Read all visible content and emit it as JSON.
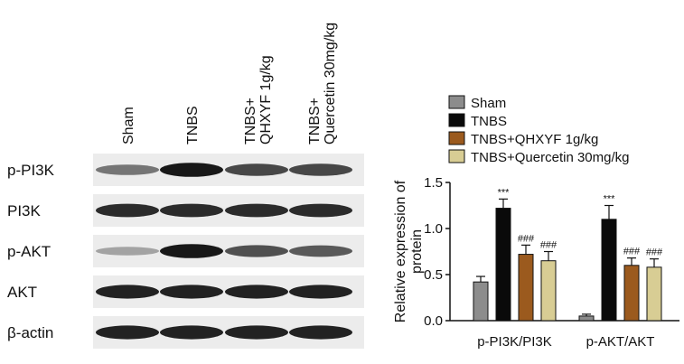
{
  "blot": {
    "lanes": [
      "Sham",
      "TNBS",
      "TNBS+\nQHXYF 1g/kg",
      "TNBS+\nQuercetin 30mg/kg"
    ],
    "rows": [
      {
        "protein": "p-PI3K",
        "intensity": [
          0.45,
          0.95,
          0.7,
          0.7
        ]
      },
      {
        "protein": "PI3K",
        "intensity": [
          0.85,
          0.85,
          0.85,
          0.85
        ]
      },
      {
        "protein": "p-AKT",
        "intensity": [
          0.2,
          0.95,
          0.65,
          0.6
        ]
      },
      {
        "protein": "AKT",
        "intensity": [
          0.9,
          0.9,
          0.9,
          0.9
        ]
      },
      {
        "protein": "β-actin",
        "intensity": [
          0.9,
          0.9,
          0.9,
          0.9
        ]
      }
    ]
  },
  "chart_data": {
    "type": "bar",
    "categories": [
      "p-PI3K/PI3K",
      "p-AKT/AKT"
    ],
    "ylabel": "Relative expression of\nprotein",
    "ylim": [
      0,
      1.5
    ],
    "yticks": [
      "0.0",
      "0.5",
      "1.0",
      "1.5"
    ],
    "legend_position": "top",
    "series": [
      {
        "name": "Sham",
        "color": "#8c8c8c",
        "values": [
          0.42,
          0.05
        ],
        "errors": [
          0.06,
          0.02
        ],
        "sig": [
          "",
          ""
        ]
      },
      {
        "name": "TNBS",
        "color": "#0a0a0a",
        "values": [
          1.22,
          1.1
        ],
        "errors": [
          0.1,
          0.15
        ],
        "sig": [
          "***",
          "***"
        ]
      },
      {
        "name": "TNBS+QHXYF 1g/kg",
        "color": "#9b5a1e",
        "values": [
          0.72,
          0.6
        ],
        "errors": [
          0.1,
          0.08
        ],
        "sig": [
          "###",
          "###"
        ]
      },
      {
        "name": "TNBS+Quercetin 30mg/kg",
        "color": "#d8cd94",
        "values": [
          0.65,
          0.58
        ],
        "errors": [
          0.1,
          0.09
        ],
        "sig": [
          "###",
          "###"
        ]
      }
    ]
  }
}
